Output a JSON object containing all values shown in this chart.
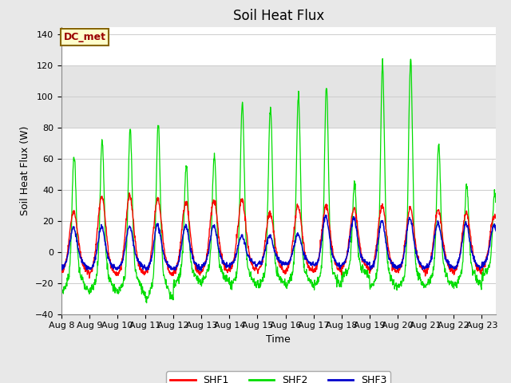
{
  "title": "Soil Heat Flux",
  "ylabel": "Soil Heat Flux (W)",
  "xlabel": "Time",
  "legend_label": "DC_met",
  "series_labels": [
    "SHF1",
    "SHF2",
    "SHF3"
  ],
  "series_colors": [
    "#ff0000",
    "#00dd00",
    "#0000cc"
  ],
  "ylim": [
    -40,
    145
  ],
  "yticks": [
    -40,
    -20,
    0,
    20,
    40,
    60,
    80,
    100,
    120,
    140
  ],
  "xtick_labels": [
    "Aug 8",
    "Aug 9",
    "Aug 10",
    "Aug 11",
    "Aug 12",
    "Aug 13",
    "Aug 14",
    "Aug 15",
    "Aug 16",
    "Aug 17",
    "Aug 18",
    "Aug 19",
    "Aug 20",
    "Aug 21",
    "Aug 22",
    "Aug 23"
  ],
  "bg_color": "#e8e8e8",
  "plot_bg_color": "#ffffff",
  "band1_color": "#e0e0e0",
  "band2_color": "#e0e0e0",
  "title_fontsize": 12,
  "axis_label_fontsize": 9,
  "tick_fontsize": 8,
  "legend_fontsize": 9,
  "figwidth": 6.4,
  "figheight": 4.8,
  "dpi": 100
}
